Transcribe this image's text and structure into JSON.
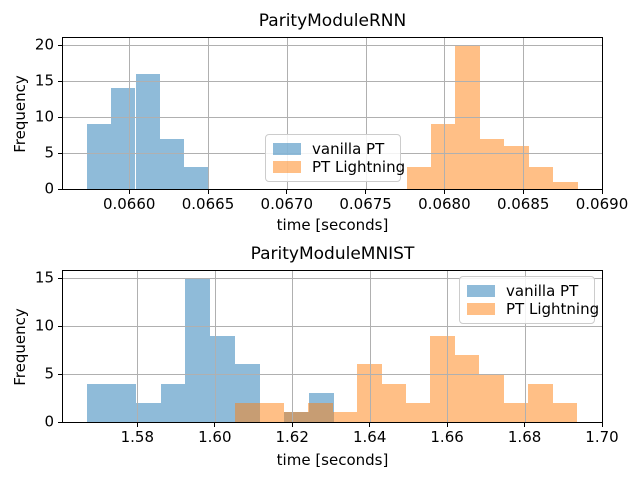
{
  "figure": {
    "background": "#ffffff"
  },
  "colors": {
    "vanilla_pt_fill": "rgba(31,119,180,0.5)",
    "pt_lightning_fill": "rgba(255,127,14,0.5)",
    "vanilla_pt_flat": "#8fbbd9",
    "pt_lightning_flat": "#ffbf87",
    "overlap_flat": "#c79d74",
    "grid": "#b0b0b0",
    "spine": "#000000",
    "legend_border": "#cccccc"
  },
  "chart_data": [
    {
      "type": "histogram",
      "title": "ParityModuleRNN",
      "xlabel": "time [seconds]",
      "ylabel": "Frequency",
      "xlim": [
        0.06558,
        0.069
      ],
      "ylim": [
        0,
        21
      ],
      "grid": true,
      "legend_location": "center",
      "xticks": [
        {
          "value": 0.066,
          "label": "0.0660"
        },
        {
          "value": 0.0665,
          "label": "0.0665"
        },
        {
          "value": 0.067,
          "label": "0.0670"
        },
        {
          "value": 0.0675,
          "label": "0.0675"
        },
        {
          "value": 0.068,
          "label": "0.0680"
        },
        {
          "value": 0.0685,
          "label": "0.0685"
        },
        {
          "value": 0.069,
          "label": "0.0690"
        }
      ],
      "yticks": [
        {
          "value": 0,
          "label": "0"
        },
        {
          "value": 5,
          "label": "5"
        },
        {
          "value": 10,
          "label": "10"
        },
        {
          "value": 15,
          "label": "15"
        },
        {
          "value": 20,
          "label": "20"
        }
      ],
      "series": [
        {
          "name": "vanilla PT",
          "color_key": "vanilla_pt_fill",
          "bin_start": 0.06573,
          "bin_width": 0.000155,
          "counts": [
            9,
            14,
            16,
            7,
            3
          ]
        },
        {
          "name": "PT Lightning",
          "color_key": "pt_lightning_fill",
          "bin_start": 0.06776,
          "bin_width": 0.000155,
          "counts": [
            3,
            9,
            20,
            7,
            6,
            3,
            1
          ]
        }
      ]
    },
    {
      "type": "histogram",
      "title": "ParityModuleMNIST",
      "xlabel": "time [seconds]",
      "ylabel": "Frequency",
      "xlim": [
        1.5608,
        1.7
      ],
      "ylim": [
        0,
        15.75
      ],
      "grid": true,
      "legend_location": "upper right",
      "xticks": [
        {
          "value": 1.58,
          "label": "1.58"
        },
        {
          "value": 1.6,
          "label": "1.60"
        },
        {
          "value": 1.62,
          "label": "1.62"
        },
        {
          "value": 1.64,
          "label": "1.64"
        },
        {
          "value": 1.66,
          "label": "1.66"
        },
        {
          "value": 1.68,
          "label": "1.68"
        },
        {
          "value": 1.7,
          "label": "1.70"
        }
      ],
      "yticks": [
        {
          "value": 0,
          "label": "0"
        },
        {
          "value": 5,
          "label": "5"
        },
        {
          "value": 10,
          "label": "10"
        },
        {
          "value": 15,
          "label": "15"
        }
      ],
      "series": [
        {
          "name": "vanilla PT",
          "color_key": "vanilla_pt_fill",
          "bin_start": 1.5669,
          "bin_width": 0.00638,
          "counts": [
            4,
            4,
            2,
            4,
            15,
            9,
            6,
            0,
            1,
            3
          ]
        },
        {
          "name": "PT Lightning",
          "color_key": "pt_lightning_fill",
          "bin_start": 1.6052,
          "bin_width": 0.00631,
          "counts": [
            2,
            2,
            1,
            2,
            1,
            6,
            4,
            2,
            9,
            7,
            5,
            2,
            4,
            2
          ]
        }
      ]
    }
  ]
}
